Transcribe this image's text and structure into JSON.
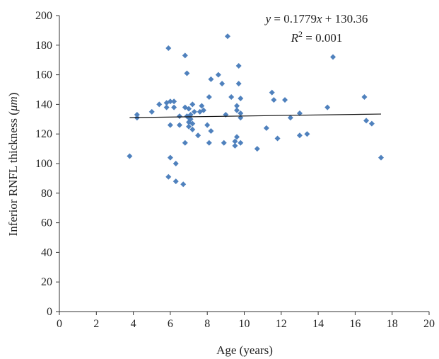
{
  "chart_data": {
    "type": "scatter",
    "xlabel": "Age (years)",
    "ylabel_prefix": "Inferior RNFL thickness (",
    "ylabel_unit": "μm",
    "ylabel_suffix": ")",
    "xlim": [
      0,
      20
    ],
    "ylim": [
      0,
      200
    ],
    "xticks": [
      "0",
      "2",
      "4",
      "6",
      "8",
      "10",
      "12",
      "14",
      "16",
      "18",
      "20"
    ],
    "yticks": [
      "0",
      "20",
      "40",
      "60",
      "80",
      "100",
      "120",
      "140",
      "160",
      "180",
      "200"
    ],
    "grid": false,
    "marker_color": "#4f81bd",
    "trendline": {
      "equation_parts": [
        "y",
        " = 0.1779",
        "x",
        " + 130.36"
      ],
      "r2_parts": [
        "R",
        "2",
        " = 0.001"
      ],
      "slope": 0.1779,
      "intercept": 130.36,
      "x_range": [
        3.8,
        17.4
      ]
    },
    "points": [
      [
        3.8,
        105
      ],
      [
        4.2,
        133
      ],
      [
        4.2,
        131
      ],
      [
        5.0,
        135
      ],
      [
        5.4,
        140
      ],
      [
        5.8,
        141
      ],
      [
        5.8,
        138
      ],
      [
        5.9,
        178
      ],
      [
        5.9,
        91
      ],
      [
        6.0,
        126
      ],
      [
        6.0,
        104
      ],
      [
        6.0,
        142
      ],
      [
        6.2,
        142
      ],
      [
        6.2,
        138
      ],
      [
        6.3,
        100
      ],
      [
        6.3,
        88
      ],
      [
        6.5,
        132
      ],
      [
        6.5,
        126
      ],
      [
        6.7,
        86
      ],
      [
        6.8,
        173
      ],
      [
        6.8,
        138
      ],
      [
        6.8,
        114
      ],
      [
        6.9,
        161
      ],
      [
        6.9,
        132
      ],
      [
        7.0,
        137
      ],
      [
        7.0,
        131
      ],
      [
        7.0,
        128
      ],
      [
        7.0,
        125
      ],
      [
        7.1,
        133
      ],
      [
        7.1,
        130
      ],
      [
        7.2,
        140
      ],
      [
        7.2,
        127
      ],
      [
        7.2,
        123
      ],
      [
        7.3,
        135
      ],
      [
        7.5,
        119
      ],
      [
        7.6,
        135
      ],
      [
        7.7,
        139
      ],
      [
        7.8,
        136
      ],
      [
        8.0,
        126
      ],
      [
        8.1,
        145
      ],
      [
        8.1,
        114
      ],
      [
        8.2,
        157
      ],
      [
        8.2,
        122
      ],
      [
        8.6,
        160
      ],
      [
        8.8,
        154
      ],
      [
        8.9,
        114
      ],
      [
        9.0,
        133
      ],
      [
        9.1,
        186
      ],
      [
        9.3,
        145
      ],
      [
        9.5,
        115
      ],
      [
        9.5,
        112
      ],
      [
        9.6,
        118
      ],
      [
        9.6,
        139
      ],
      [
        9.6,
        136
      ],
      [
        9.7,
        166
      ],
      [
        9.7,
        154
      ],
      [
        9.8,
        144
      ],
      [
        9.8,
        134
      ],
      [
        9.8,
        131
      ],
      [
        9.8,
        114
      ],
      [
        10.7,
        110
      ],
      [
        11.2,
        124
      ],
      [
        11.5,
        148
      ],
      [
        11.6,
        143
      ],
      [
        11.8,
        117
      ],
      [
        12.2,
        143
      ],
      [
        12.5,
        131
      ],
      [
        13.0,
        119
      ],
      [
        13.0,
        134
      ],
      [
        13.4,
        120
      ],
      [
        14.5,
        138
      ],
      [
        14.8,
        172
      ],
      [
        16.5,
        145
      ],
      [
        16.6,
        129
      ],
      [
        16.9,
        127
      ],
      [
        17.4,
        104
      ]
    ]
  }
}
